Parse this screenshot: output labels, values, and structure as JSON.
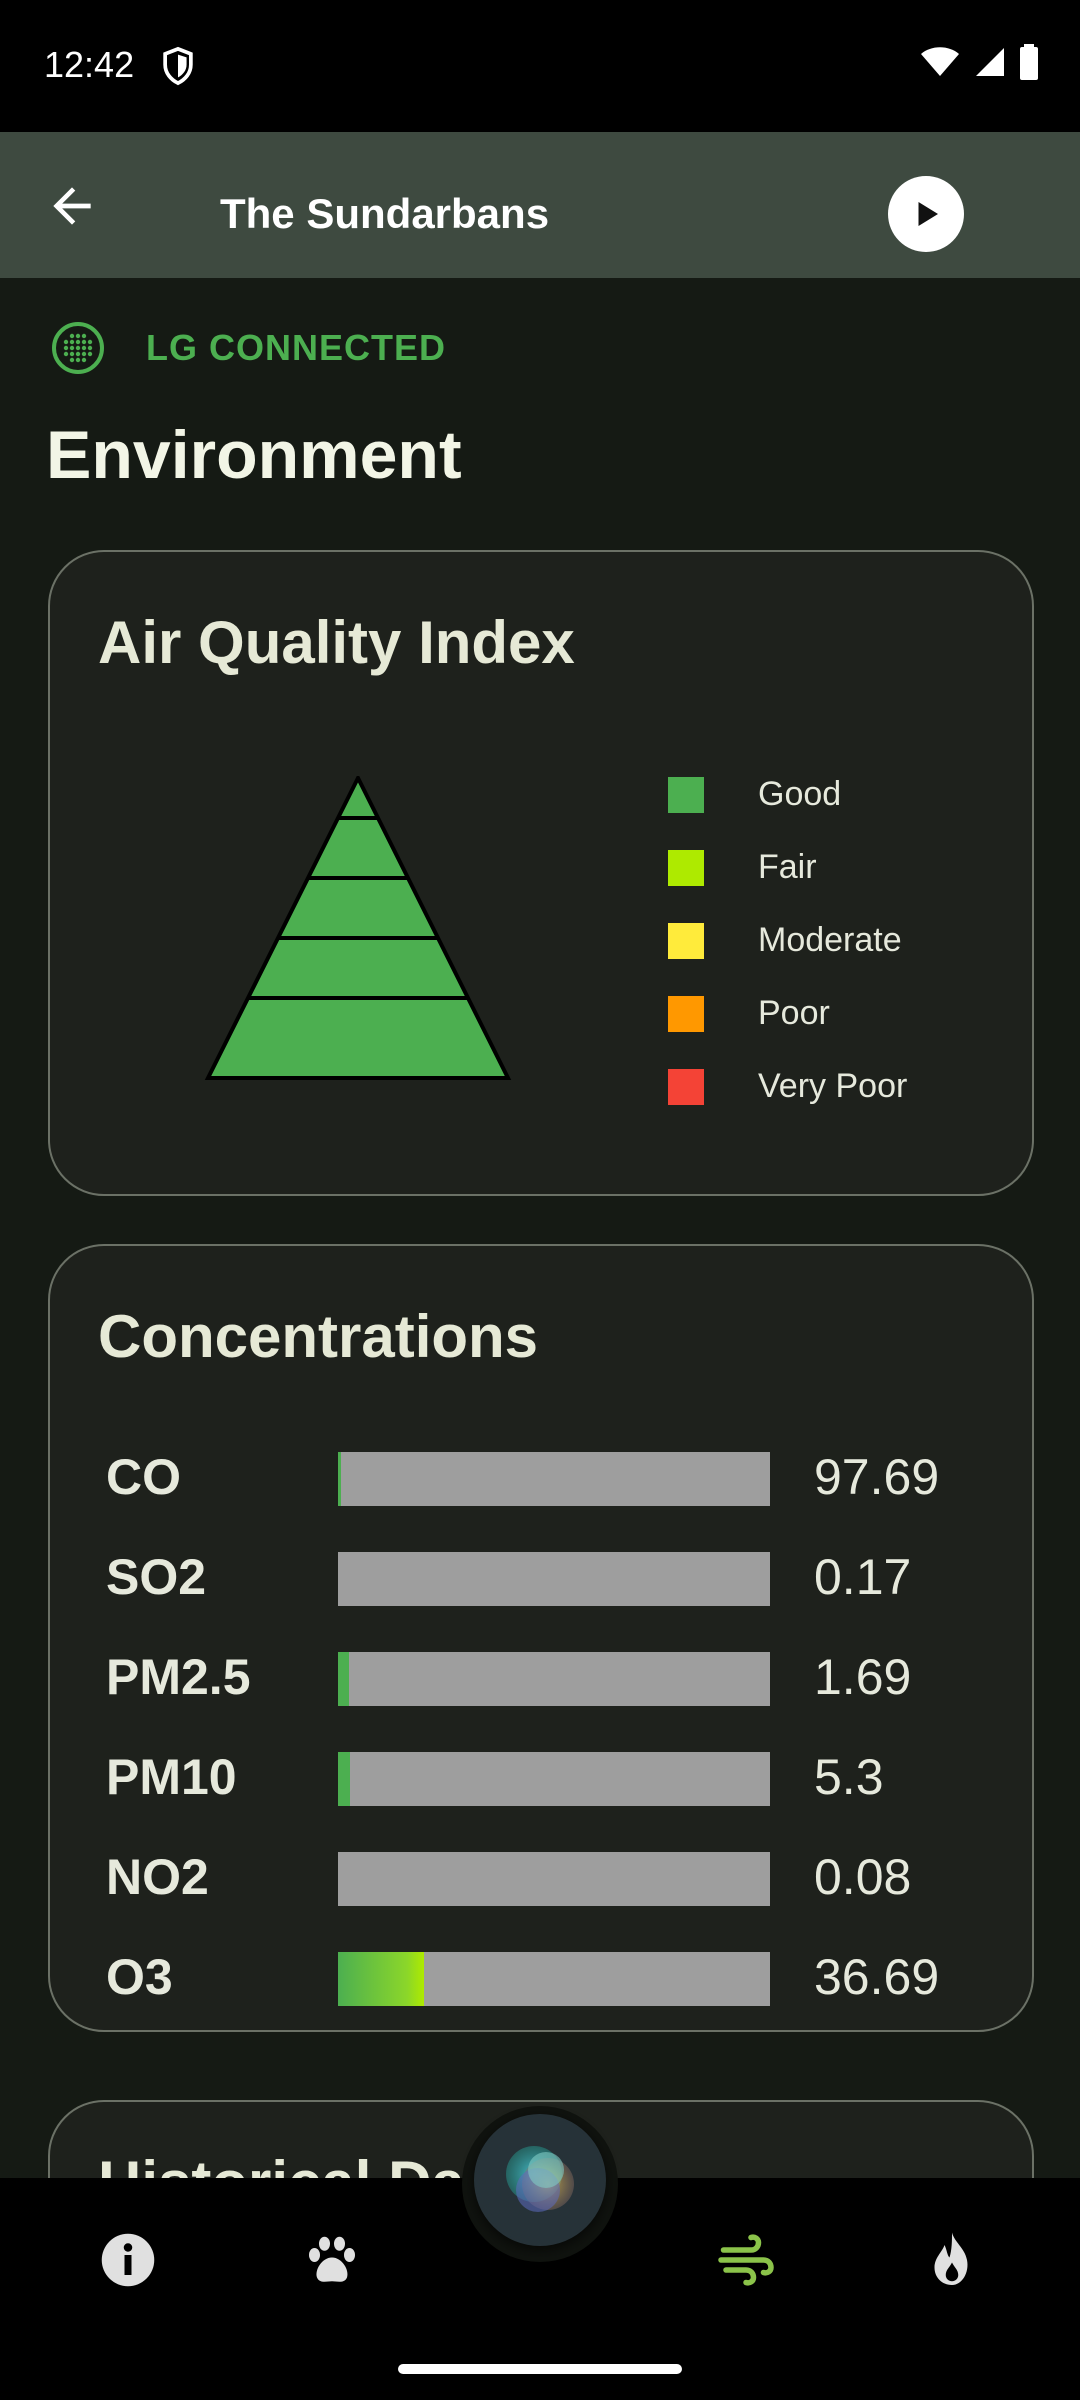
{
  "status_bar": {
    "time": "12:42"
  },
  "app_bar": {
    "title": "The Sundarbans"
  },
  "connection": {
    "label": "LG CONNECTED"
  },
  "section": {
    "title": "Environment"
  },
  "aqi_card": {
    "title": "Air Quality Index",
    "legend": [
      {
        "label": "Good",
        "color": "#4caf50"
      },
      {
        "label": "Fair",
        "color": "#aeea00"
      },
      {
        "label": "Moderate",
        "color": "#ffeb3b"
      },
      {
        "label": "Poor",
        "color": "#ff9800"
      },
      {
        "label": "Very Poor",
        "color": "#f44336"
      }
    ],
    "pyramid_color": "#4caf50"
  },
  "concentrations_card": {
    "title": "Concentrations",
    "rows": [
      {
        "name": "CO",
        "value": "97.69",
        "fill_fraction": 0.008,
        "fill_color": "#4caf50"
      },
      {
        "name": "SO2",
        "value": "0.17",
        "fill_fraction": 0.0,
        "fill_color": "#4caf50"
      },
      {
        "name": "PM2.5",
        "value": "1.69",
        "fill_fraction": 0.025,
        "fill_color": "#4caf50"
      },
      {
        "name": "PM10",
        "value": "5.3",
        "fill_fraction": 0.028,
        "fill_color": "#4caf50"
      },
      {
        "name": "NO2",
        "value": "0.08",
        "fill_fraction": 0.0,
        "fill_color": "#4caf50"
      },
      {
        "name": "O3",
        "value": "36.69",
        "fill_fraction": 0.2,
        "fill_color": "#8bd62a"
      }
    ]
  },
  "historical_card": {
    "title": "Historical Data"
  },
  "bottom_nav": {
    "items": [
      {
        "icon": "info-icon",
        "active": false
      },
      {
        "icon": "paw-icon",
        "active": false
      },
      {
        "icon": "wind-icon",
        "active": true
      },
      {
        "icon": "fire-icon",
        "active": false
      }
    ],
    "active_color": "#8bc34a",
    "inactive_color": "#e0e0e0"
  }
}
